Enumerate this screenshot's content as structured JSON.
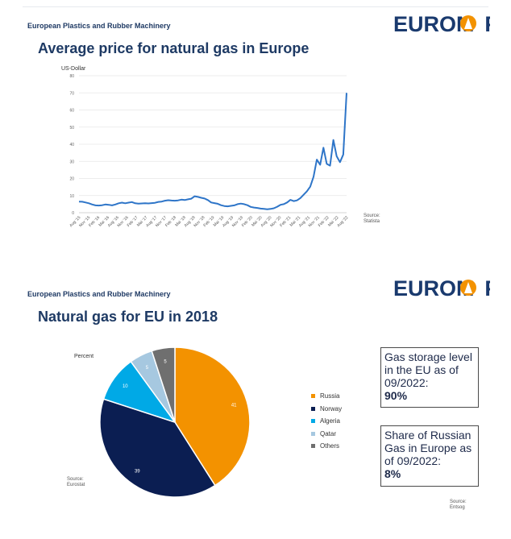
{
  "slide1": {
    "tagline": "European Plastics and Rubber Machinery",
    "logo": "EUROMAP",
    "title": "Average price for natural gas in Europe",
    "source": [
      "Source:",
      "Statista"
    ]
  },
  "slide2": {
    "tagline": "European Plastics and Rubber Machinery",
    "logo": "EUROMAP",
    "title": "Natural gas for EU in 2018",
    "source": [
      "Source:",
      "Eurostat"
    ],
    "box1": {
      "text": "Gas storage level in the EU as of 09/2022:",
      "value": "90%"
    },
    "box2": {
      "text": "Share of Russian Gas in Europe as of 09/2022:",
      "value": "8%"
    },
    "box_source": [
      "Source:",
      "Entsog"
    ]
  },
  "colors": {
    "brand_navy": "#1a3a6e",
    "brand_orange": "#f39200",
    "line": "#2e75c8"
  },
  "chart_data": [
    {
      "type": "line",
      "title": "Average price for natural gas in Europe",
      "ylabel": "US-Dollar",
      "ylim": [
        0,
        80
      ],
      "yticks": [
        0,
        10,
        20,
        30,
        40,
        50,
        60,
        70,
        80
      ],
      "grid": true,
      "xticks": [
        "Aug '15",
        "Nov '15",
        "Feb '16",
        "Mai '16",
        "Aug '16",
        "Nov '16",
        "Feb '17",
        "Mai '17",
        "Aug '17",
        "Nov '17",
        "Feb '18",
        "Mai '18",
        "Aug '18",
        "Nov '18",
        "Feb '19",
        "Mai '19",
        "Aug '19",
        "Nov '19",
        "Feb '20",
        "Mai '20",
        "Aug '20",
        "Nov '20",
        "Feb '21",
        "Mai '21",
        "Aug '21",
        "Nov '21",
        "Feb '22",
        "Mai '22",
        "Aug '22"
      ],
      "series": [
        {
          "values": [
            6.5,
            6.4,
            6,
            5.5,
            4.8,
            4.3,
            4.2,
            4.4,
            4.8,
            4.6,
            4.3,
            4.8,
            5.5,
            5.9,
            5.5,
            5.9,
            6.2,
            5.5,
            5.3,
            5.4,
            5.5,
            5.4,
            5.6,
            5.8,
            6.3,
            6.5,
            7,
            7.3,
            7.1,
            7,
            7.2,
            7.6,
            7.4,
            7.8,
            8.2,
            9.6,
            9.2,
            8.7,
            8.3,
            7.4,
            6,
            5.6,
            5.2,
            4.4,
            3.9,
            3.7,
            4,
            4.3,
            5,
            5.3,
            5,
            4.4,
            3.4,
            3,
            2.8,
            2.4,
            2.2,
            2,
            2.2,
            2.6,
            3.5,
            4.6,
            5,
            6,
            7.5,
            6.8,
            7.2,
            8.5,
            10.5,
            12.5,
            15.2,
            21,
            31,
            28,
            38,
            28.5,
            27.5,
            42.5,
            33,
            29.5,
            34,
            70
          ]
        }
      ]
    },
    {
      "type": "pie",
      "title": "Natural gas for EU in 2018",
      "unit_label": "Percent",
      "labels": [
        "Russia",
        "Norway",
        "Algeria",
        "Qatar",
        "Others"
      ],
      "values": [
        41,
        39,
        10,
        5,
        5
      ],
      "colors": [
        "#f39200",
        "#0b1e52",
        "#00a9e6",
        "#a6c8e0",
        "#6f6f6f"
      ],
      "legend": "right"
    }
  ]
}
